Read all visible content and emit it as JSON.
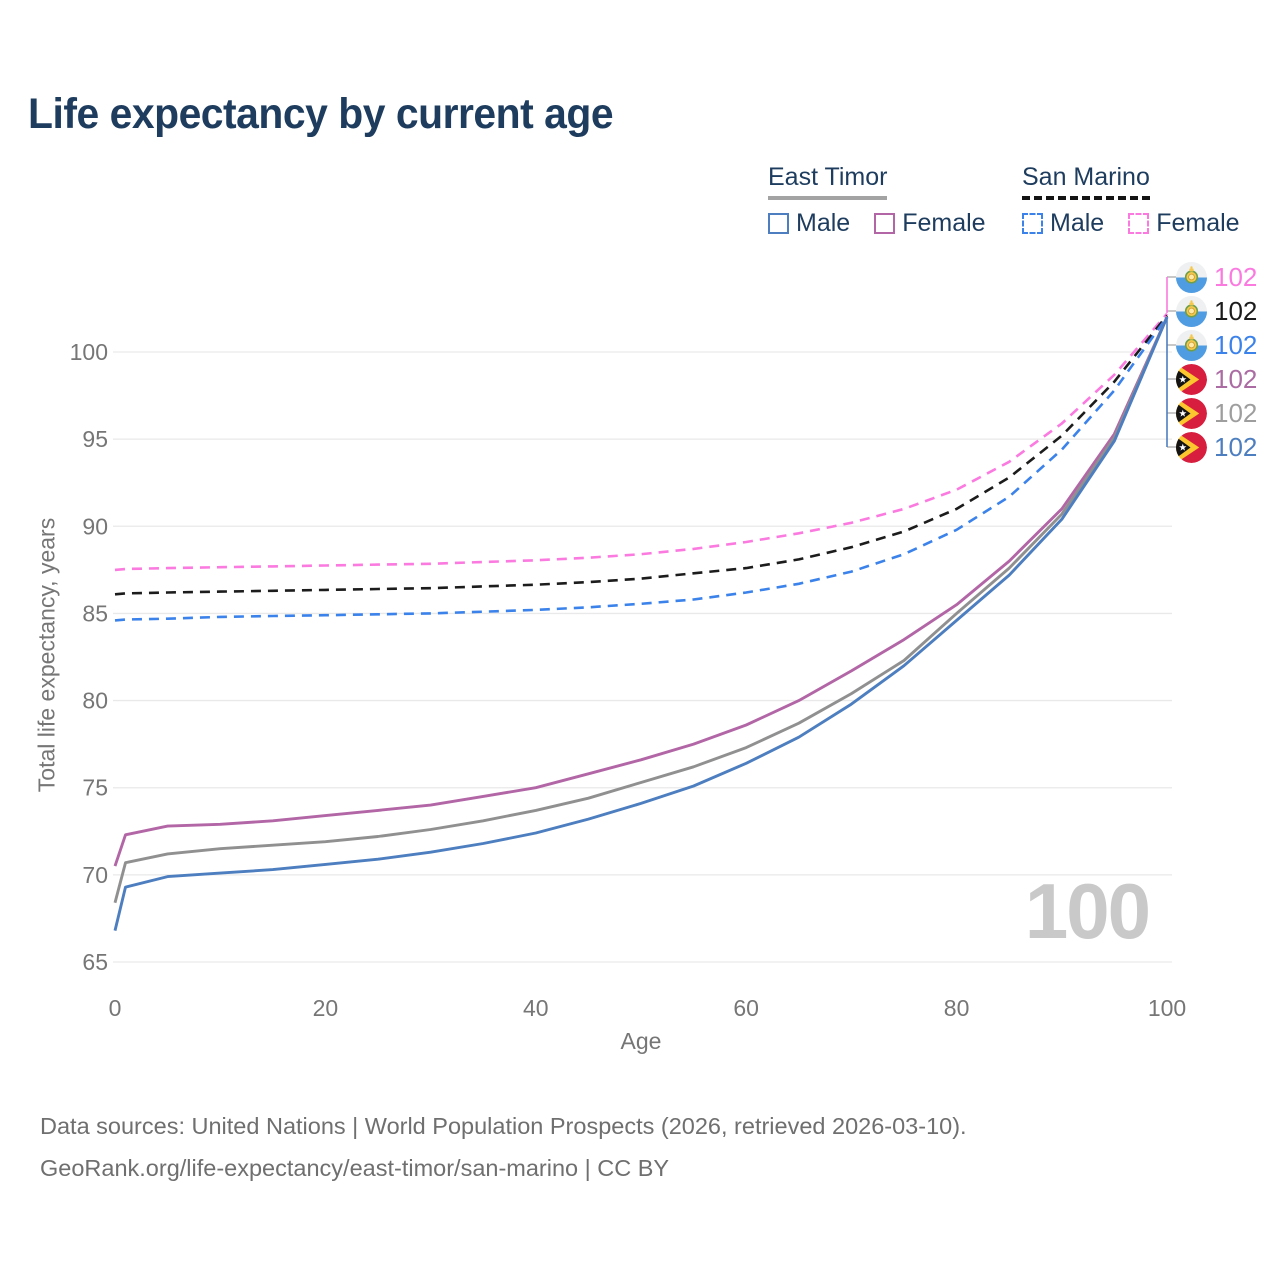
{
  "title": "Life expectancy by current age",
  "legend": {
    "groups": [
      {
        "name": "East Timor",
        "line_style": "solid",
        "underline_color": "#a3a3a3",
        "items": [
          {
            "label": "Male",
            "color": "#4d7ebf",
            "dash": false
          },
          {
            "label": "Female",
            "color": "#b266a6",
            "dash": false
          }
        ]
      },
      {
        "name": "San Marino",
        "line_style": "dashed",
        "underline_color": "#141414",
        "items": [
          {
            "label": "Male",
            "color": "#3b82ea",
            "dash": true
          },
          {
            "label": "Female",
            "color": "#fb7ae0",
            "dash": true
          }
        ]
      }
    ]
  },
  "chart_data": {
    "type": "line",
    "title": "Life expectancy by current age",
    "xlabel": "Age",
    "ylabel": "Total life expectancy, years",
    "xlim": [
      0,
      100
    ],
    "ylim": [
      65,
      103
    ],
    "x_ticks": [
      0,
      20,
      40,
      60,
      80,
      100
    ],
    "y_ticks": [
      65,
      70,
      75,
      80,
      85,
      90,
      95,
      100
    ],
    "grid": "horizontal",
    "legend_position": "top-right",
    "x": [
      0,
      1,
      5,
      10,
      15,
      20,
      25,
      30,
      35,
      40,
      45,
      50,
      55,
      60,
      65,
      70,
      75,
      80,
      85,
      90,
      95,
      100
    ],
    "series": [
      {
        "name": "San Marino Female",
        "country": "San Marino",
        "sex": "Female",
        "color": "#fb7ae0",
        "dash": true,
        "values": [
          87.5,
          87.55,
          87.6,
          87.65,
          87.7,
          87.75,
          87.8,
          87.85,
          87.95,
          88.05,
          88.2,
          88.4,
          88.7,
          89.1,
          89.6,
          90.2,
          91.0,
          92.1,
          93.7,
          95.9,
          98.7,
          102.2
        ]
      },
      {
        "name": "San Marino Total",
        "country": "San Marino",
        "sex": "Total",
        "color": "#1c1c1c",
        "dash": true,
        "values": [
          86.1,
          86.15,
          86.2,
          86.25,
          86.3,
          86.35,
          86.4,
          86.45,
          86.55,
          86.65,
          86.8,
          87.0,
          87.3,
          87.6,
          88.1,
          88.8,
          89.7,
          91.0,
          92.8,
          95.2,
          98.3,
          102.1
        ]
      },
      {
        "name": "San Marino Male",
        "country": "San Marino",
        "sex": "Male",
        "color": "#3b82ea",
        "dash": true,
        "values": [
          84.6,
          84.65,
          84.7,
          84.8,
          84.85,
          84.9,
          84.95,
          85.0,
          85.1,
          85.2,
          85.35,
          85.55,
          85.8,
          86.2,
          86.7,
          87.4,
          88.4,
          89.8,
          91.7,
          94.4,
          97.8,
          102.0
        ]
      },
      {
        "name": "East Timor Female",
        "country": "East Timor",
        "sex": "Female",
        "color": "#b266a6",
        "dash": false,
        "values": [
          70.5,
          72.3,
          72.8,
          72.9,
          73.1,
          73.4,
          73.7,
          74.0,
          74.5,
          75.0,
          75.8,
          76.6,
          77.5,
          78.6,
          80.0,
          81.7,
          83.5,
          85.5,
          88.0,
          91.0,
          95.3,
          102.0
        ]
      },
      {
        "name": "East Timor Total",
        "country": "East Timor",
        "sex": "Total",
        "color": "#909090",
        "dash": false,
        "values": [
          68.4,
          70.7,
          71.2,
          71.5,
          71.7,
          71.9,
          72.2,
          72.6,
          73.1,
          73.7,
          74.4,
          75.3,
          76.2,
          77.3,
          78.7,
          80.4,
          82.3,
          85.0,
          87.6,
          90.7,
          95.1,
          102.0
        ]
      },
      {
        "name": "East Timor Male",
        "country": "East Timor",
        "sex": "Male",
        "color": "#4d7ebf",
        "dash": false,
        "values": [
          66.8,
          69.3,
          69.9,
          70.1,
          70.3,
          70.6,
          70.9,
          71.3,
          71.8,
          72.4,
          73.2,
          74.1,
          75.1,
          76.4,
          77.9,
          79.8,
          82.0,
          84.6,
          87.2,
          90.4,
          94.9,
          102.0
        ]
      }
    ],
    "end_labels": [
      {
        "country": "San Marino",
        "series": "San Marino Female",
        "value": "102",
        "color": "#fb7ae0"
      },
      {
        "country": "San Marino",
        "series": "San Marino Total",
        "value": "102",
        "color": "#1c1c1c"
      },
      {
        "country": "San Marino",
        "series": "San Marino Male",
        "value": "102",
        "color": "#3b82ea"
      },
      {
        "country": "East Timor",
        "series": "East Timor Female",
        "value": "102",
        "color": "#ab6ba3"
      },
      {
        "country": "East Timor",
        "series": "East Timor Total",
        "value": "102",
        "color": "#9e9e9e"
      },
      {
        "country": "East Timor",
        "series": "East Timor Male",
        "value": "102",
        "color": "#4d7ebf"
      }
    ],
    "hover_age_watermark": "100"
  },
  "footer": {
    "line1": "Data sources: United Nations | World Population Prospects (2026, retrieved 2026-03-10).",
    "line2": "GeoRank.org/life-expectancy/east-timor/san-marino | CC BY"
  }
}
